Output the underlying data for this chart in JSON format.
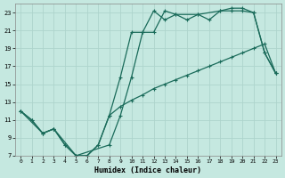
{
  "xlabel": "Humidex (Indice chaleur)",
  "bg_color": "#c5e8e0",
  "grid_color": "#aed4cc",
  "line_color": "#1a6b5a",
  "xlim": [
    -0.5,
    23.5
  ],
  "ylim": [
    7,
    24
  ],
  "xtick_labels": [
    "0",
    "1",
    "2",
    "3",
    "4",
    "5",
    "6",
    "7",
    "8",
    "9",
    "10",
    "11",
    "12",
    "13",
    "14",
    "15",
    "16",
    "17",
    "18",
    "19",
    "20",
    "21",
    "22",
    "23"
  ],
  "xtick_vals": [
    0,
    1,
    2,
    3,
    4,
    5,
    6,
    7,
    8,
    9,
    10,
    11,
    12,
    13,
    14,
    15,
    16,
    17,
    18,
    19,
    20,
    21,
    22,
    23
  ],
  "ytick_vals": [
    7,
    9,
    11,
    13,
    15,
    17,
    19,
    21,
    23
  ],
  "line1_x": [
    0,
    1,
    2,
    3,
    4,
    5,
    6,
    7,
    8,
    9,
    10,
    11,
    12,
    13,
    14,
    15,
    16,
    17,
    18,
    19,
    20,
    21,
    22,
    23
  ],
  "line1_y": [
    12,
    11,
    9.5,
    10,
    8.2,
    7,
    7,
    8.2,
    11.5,
    15.8,
    20.8,
    20.8,
    23.2,
    22.2,
    22.8,
    22.2,
    22.8,
    22.2,
    23.2,
    23.2,
    23.2,
    23,
    18.5,
    16.2
  ],
  "line2_x": [
    0,
    2,
    3,
    5,
    8,
    9,
    10,
    11,
    12,
    13,
    14,
    16,
    18,
    19,
    20,
    21,
    22,
    23
  ],
  "line2_y": [
    12,
    9.5,
    10,
    7,
    8.2,
    11.5,
    15.8,
    20.8,
    20.8,
    23.2,
    22.8,
    22.8,
    23.2,
    23.5,
    23.5,
    23,
    18.5,
    16.2
  ],
  "line3_x": [
    0,
    1,
    2,
    3,
    4,
    5,
    6,
    7,
    8,
    9,
    10,
    11,
    12,
    13,
    14,
    15,
    16,
    17,
    18,
    19,
    20,
    21,
    22,
    23
  ],
  "line3_y": [
    12,
    11,
    9.5,
    10,
    8.2,
    7,
    7,
    8.2,
    11.5,
    12.5,
    13.2,
    13.8,
    14.5,
    15.0,
    15.5,
    16.0,
    16.5,
    17.0,
    17.5,
    18.0,
    18.5,
    19.0,
    19.5,
    16.2
  ]
}
